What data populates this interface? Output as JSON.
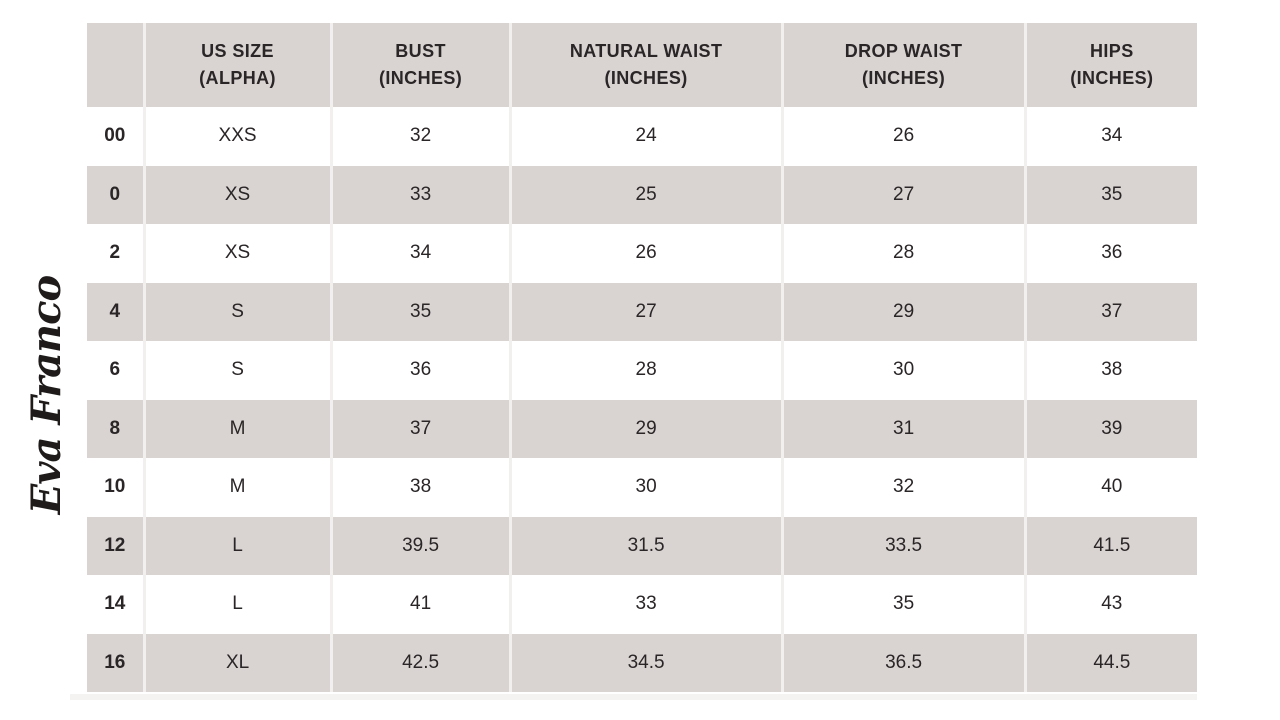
{
  "brand": {
    "logo_text": "Eva Franco"
  },
  "colors": {
    "header_bg": "#d9d4d2",
    "stripe_row_bg": "#d9d4d2",
    "plain_row_bg": "#ffffff",
    "text": "#2a2526",
    "divider": "#f2f0ef",
    "logo_ink": "#1e1b1a"
  },
  "chart_data": {
    "type": "table",
    "columns": [
      {
        "line1": "",
        "line2": ""
      },
      {
        "line1": "US SIZE",
        "line2": "(ALPHA)"
      },
      {
        "line1": "BUST",
        "line2": "(INCHES)"
      },
      {
        "line1": "NATURAL WAIST",
        "line2": "(INCHES)"
      },
      {
        "line1": "DROP WAIST",
        "line2": "(INCHES)"
      },
      {
        "line1": "HIPS",
        "line2": "(INCHES)"
      }
    ],
    "column_keys": [
      "us-size",
      "alpha-size",
      "bust-inches",
      "natural-waist-inches",
      "drop-waist-inches",
      "hips-inches"
    ],
    "rows": [
      [
        "00",
        "XXS",
        "32",
        "24",
        "26",
        "34"
      ],
      [
        "0",
        "XS",
        "33",
        "25",
        "27",
        "35"
      ],
      [
        "2",
        "XS",
        "34",
        "26",
        "28",
        "36"
      ],
      [
        "4",
        "S",
        "35",
        "27",
        "29",
        "37"
      ],
      [
        "6",
        "S",
        "36",
        "28",
        "30",
        "38"
      ],
      [
        "8",
        "M",
        "37",
        "29",
        "31",
        "39"
      ],
      [
        "10",
        "M",
        "38",
        "30",
        "32",
        "40"
      ],
      [
        "12",
        "L",
        "39.5",
        "31.5",
        "33.5",
        "41.5"
      ],
      [
        "14",
        "L",
        "41",
        "33",
        "35",
        "43"
      ],
      [
        "16",
        "XL",
        "42.5",
        "34.5",
        "36.5",
        "44.5"
      ]
    ],
    "layout": {
      "stripe_rows": "alternating, starting with white",
      "header_rows": 1,
      "grid": "light vertical dividers only"
    }
  }
}
